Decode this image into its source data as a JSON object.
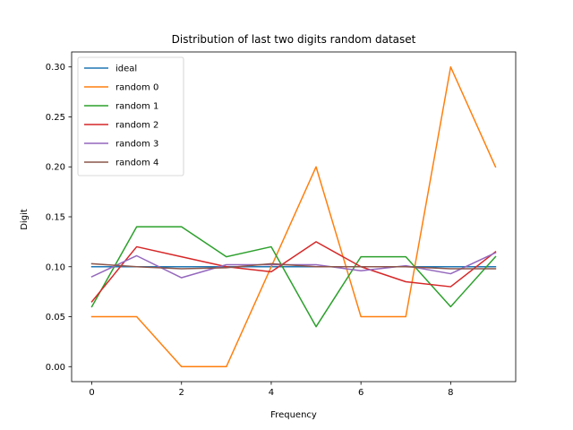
{
  "chart_data": {
    "type": "line",
    "title": "Distribution of last two digits random dataset",
    "xlabel": "Frequency",
    "ylabel": "Digit",
    "xlim": [
      -0.45,
      9.45
    ],
    "ylim": [
      -0.015,
      0.315
    ],
    "xticks": [
      0,
      2,
      4,
      6,
      8
    ],
    "yticks": [
      0.0,
      0.05,
      0.1,
      0.15,
      0.2,
      0.25,
      0.3
    ],
    "ytick_labels": [
      "0.00",
      "0.05",
      "0.10",
      "0.15",
      "0.20",
      "0.25",
      "0.30"
    ],
    "grid": false,
    "legend_position": "top-left",
    "x": [
      0,
      1,
      2,
      3,
      4,
      5,
      6,
      7,
      8,
      9
    ],
    "series": [
      {
        "name": "ideal",
        "color": "#1f77b4",
        "values": [
          0.1,
          0.1,
          0.1,
          0.1,
          0.1,
          0.1,
          0.1,
          0.1,
          0.1,
          0.1
        ]
      },
      {
        "name": "random 0",
        "color": "#ff7f0e",
        "values": [
          0.05,
          0.05,
          0.0,
          0.0,
          0.1,
          0.2,
          0.05,
          0.05,
          0.3,
          0.2
        ]
      },
      {
        "name": "random 1",
        "color": "#2ca02c",
        "values": [
          0.06,
          0.14,
          0.14,
          0.11,
          0.12,
          0.04,
          0.11,
          0.11,
          0.06,
          0.11
        ]
      },
      {
        "name": "random 2",
        "color": "#d62728",
        "values": [
          0.065,
          0.12,
          0.11,
          0.1,
          0.095,
          0.125,
          0.1,
          0.085,
          0.08,
          0.115
        ]
      },
      {
        "name": "random 3",
        "color": "#9467bd",
        "values": [
          0.09,
          0.111,
          0.089,
          0.102,
          0.102,
          0.102,
          0.096,
          0.101,
          0.093,
          0.114
        ]
      },
      {
        "name": "random 4",
        "color": "#8c564b",
        "values": [
          0.103,
          0.1,
          0.098,
          0.099,
          0.103,
          0.1,
          0.1,
          0.1,
          0.098,
          0.098
        ]
      }
    ]
  }
}
